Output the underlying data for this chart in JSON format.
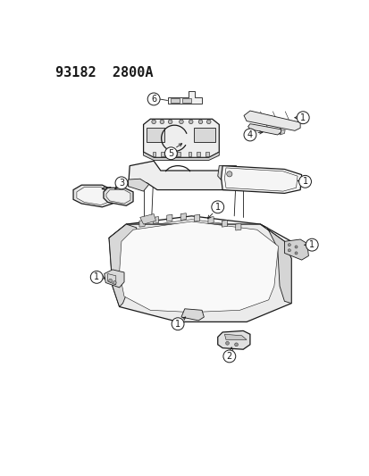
{
  "title": "93182  2800A",
  "bg_color": "#ffffff",
  "lc": "#1a1a1a",
  "lc_thin": "#333333",
  "font_size_title": 11,
  "font_size_callout": 7,
  "figw": 4.14,
  "figh": 5.33,
  "dpi": 100
}
